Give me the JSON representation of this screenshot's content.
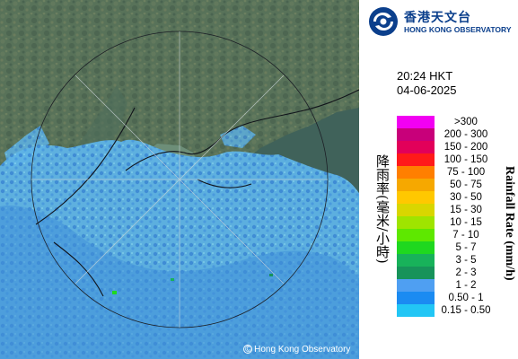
{
  "header": {
    "org_name_cn": "香港天文台",
    "org_name_en": "HONG KONG OBSERVATORY"
  },
  "timestamp": {
    "time": "20:24 HKT",
    "date": "04-06-2025"
  },
  "legend": {
    "title_cn": "降雨率(毫米/小時)",
    "title_en": "Rainfall Rate (mm/h)",
    "bins": [
      {
        "label": ">300",
        "color": "#f200f2"
      },
      {
        "label": "200 - 300",
        "color": "#c8007a"
      },
      {
        "label": "150 - 200",
        "color": "#e2005a"
      },
      {
        "label": "100 - 150",
        "color": "#ff1a1a"
      },
      {
        "label": "75 - 100",
        "color": "#ff7f00"
      },
      {
        "label": "50 - 75",
        "color": "#f6a800"
      },
      {
        "label": "30 - 50",
        "color": "#ffc800"
      },
      {
        "label": "15 - 30",
        "color": "#d9d600"
      },
      {
        "label": "10 - 15",
        "color": "#9fe400"
      },
      {
        "label": "7 - 10",
        "color": "#5ee800"
      },
      {
        "label": "5 - 7",
        "color": "#1fd81f"
      },
      {
        "label": "3 - 5",
        "color": "#18b25a"
      },
      {
        "label": "2 - 3",
        "color": "#17935a"
      },
      {
        "label": "1 - 2",
        "color": "#4f9ff2"
      },
      {
        "label": "0.50 - 1",
        "color": "#1b8bf2"
      },
      {
        "label": "0.15 - 0.50",
        "color": "#22c6f5"
      }
    ]
  },
  "map": {
    "copyright": "© Hong Kong Observatory",
    "land_color": "#566f5a",
    "sea_color": "#3d6256",
    "rain_light_color": "#5fb5e8",
    "rain_medium_color": "#3f8fd8"
  }
}
